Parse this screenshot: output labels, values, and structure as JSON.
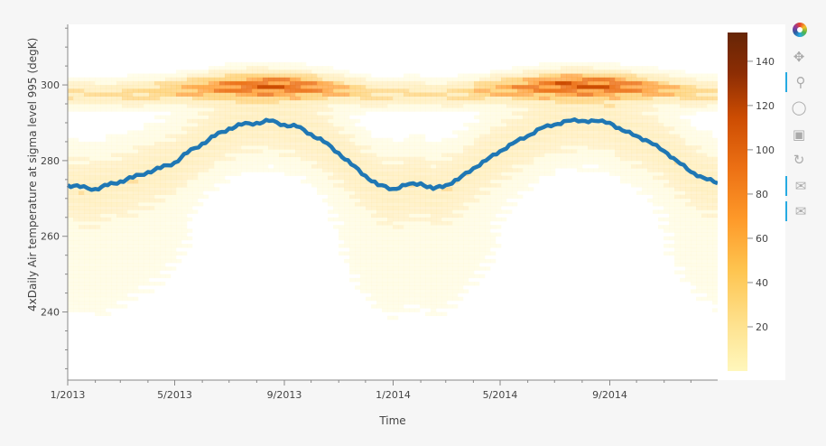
{
  "chart_data": {
    "type": "heatmap",
    "xlabel": "Time",
    "ylabel": "4xDaily Air temperature at sigma level 995 (degK)",
    "x_ticks": [
      "1/2013",
      "5/2013",
      "9/2013",
      "1/2014",
      "5/2014",
      "9/2014"
    ],
    "y_ticks": [
      240,
      260,
      280,
      300
    ],
    "x_range": [
      "2013-01-01",
      "2014-12-31"
    ],
    "y_range": [
      222,
      316
    ],
    "colorbar": {
      "ticks": [
        20,
        40,
        60,
        80,
        100,
        120,
        140
      ],
      "range": [
        0,
        153
      ],
      "palette": [
        "#fff7bc",
        "#fee391",
        "#fec44f",
        "#fe9929",
        "#ec7014",
        "#cc4c02",
        "#8c2d04",
        "#662506"
      ]
    },
    "series": [
      {
        "color": "#1f77b4",
        "x": [
          "2013-01-01",
          "2013-01-15",
          "2013-02-01",
          "2013-02-15",
          "2013-03-01",
          "2013-03-15",
          "2013-04-01",
          "2013-04-15",
          "2013-05-01",
          "2013-05-15",
          "2013-06-01",
          "2013-06-15",
          "2013-07-01",
          "2013-07-15",
          "2013-08-01",
          "2013-08-15",
          "2013-09-01",
          "2013-09-15",
          "2013-10-01",
          "2013-10-15",
          "2013-11-01",
          "2013-11-15",
          "2013-12-01",
          "2013-12-15",
          "2014-01-01",
          "2014-01-15",
          "2014-02-01",
          "2014-02-15",
          "2014-03-01",
          "2014-03-15",
          "2014-04-01",
          "2014-04-15",
          "2014-05-01",
          "2014-05-15",
          "2014-06-01",
          "2014-06-15",
          "2014-07-01",
          "2014-07-15",
          "2014-08-01",
          "2014-08-15",
          "2014-09-01",
          "2014-09-15",
          "2014-10-01",
          "2014-10-15",
          "2014-11-01",
          "2014-11-15",
          "2014-12-01",
          "2014-12-15",
          "2014-12-31"
        ],
        "y": [
          273.5,
          273.0,
          272.5,
          273.5,
          274.5,
          275.5,
          277.0,
          278.0,
          279.5,
          282.0,
          284.5,
          286.5,
          288.5,
          289.5,
          290.0,
          290.5,
          289.5,
          289.0,
          287.0,
          285.0,
          282.0,
          279.0,
          276.0,
          273.5,
          272.5,
          273.5,
          274.0,
          272.5,
          273.5,
          275.0,
          278.0,
          280.0,
          282.5,
          284.5,
          286.5,
          288.5,
          289.5,
          290.5,
          290.5,
          290.5,
          290.0,
          288.0,
          286.5,
          285.0,
          282.5,
          280.0,
          277.0,
          275.5,
          274.0
        ]
      }
    ],
    "grid": false
  },
  "toolbar": {
    "tools": [
      "bokeh-logo-icon",
      "pan-icon",
      "box-zoom-icon",
      "wheel-zoom-icon",
      "save-icon",
      "reset-icon",
      "hover-icon",
      "hover-icon"
    ]
  }
}
